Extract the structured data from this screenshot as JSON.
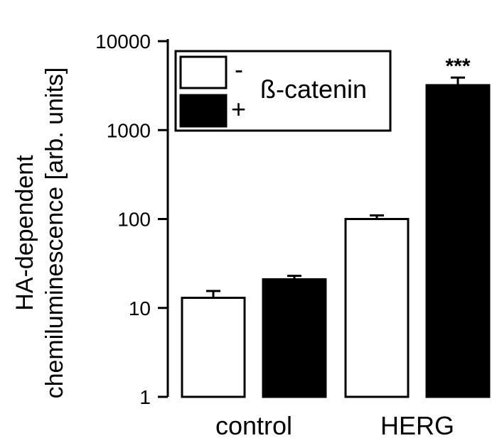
{
  "chart_data": {
    "type": "bar",
    "scale": "log",
    "ylim": [
      1,
      10000
    ],
    "yticks": [
      "1",
      "10",
      "100",
      "1000",
      "10000"
    ],
    "ylabel_lines": [
      "HA-dependent",
      "chemiluminescence [arb. units]"
    ],
    "xlabel": "",
    "title": "",
    "categories": [
      "control",
      "HERG"
    ],
    "series": [
      {
        "name": "-",
        "values": [
          13,
          100
        ],
        "errors": [
          2.5,
          10
        ],
        "color": "#ffffff"
      },
      {
        "name": "+",
        "values": [
          21,
          3200
        ],
        "errors": [
          2.0,
          700
        ],
        "color": "#000000"
      }
    ],
    "legend": {
      "title": "ß-catenin",
      "placement": "top-left"
    },
    "annotations": [
      {
        "text": "***",
        "category": "HERG",
        "series": "+"
      }
    ]
  }
}
